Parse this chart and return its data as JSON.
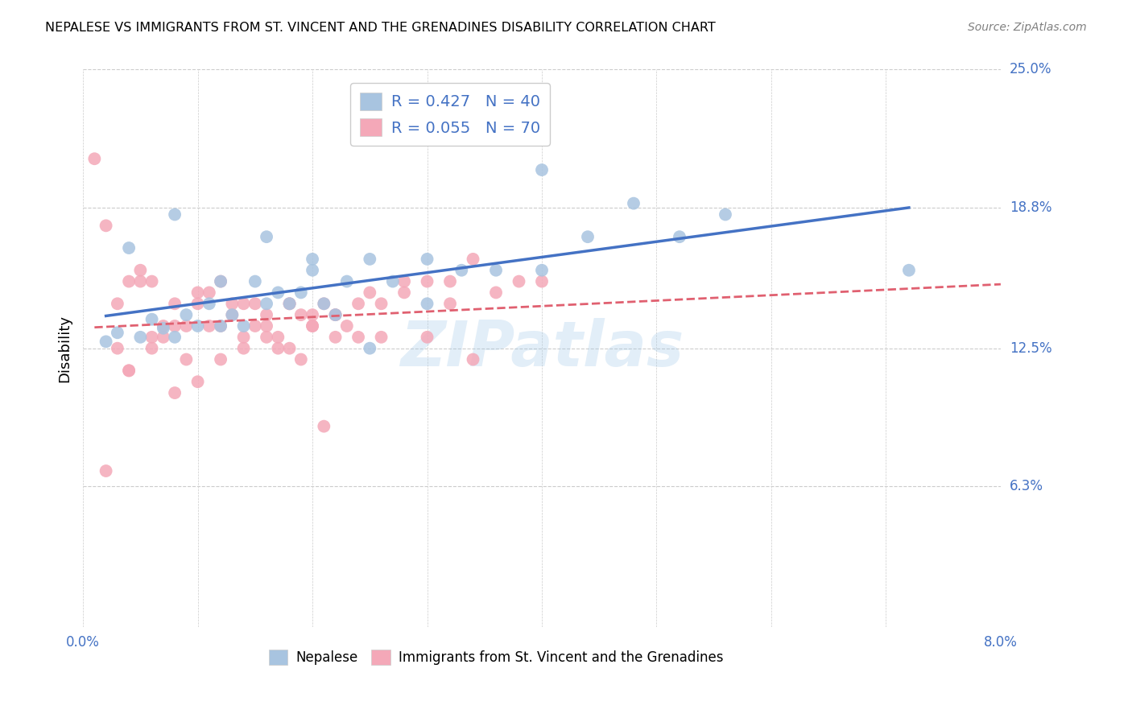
{
  "title": "NEPALESE VS IMMIGRANTS FROM ST. VINCENT AND THE GRENADINES DISABILITY CORRELATION CHART",
  "source": "Source: ZipAtlas.com",
  "ylabel": "Disability",
  "xlim": [
    0.0,
    0.08
  ],
  "ylim": [
    0.0,
    0.25
  ],
  "ytick_labels": [
    "6.3%",
    "12.5%",
    "18.8%",
    "25.0%"
  ],
  "ytick_values": [
    0.063,
    0.125,
    0.188,
    0.25
  ],
  "nepalese_R": 0.427,
  "nepalese_N": 40,
  "svg_R": 0.055,
  "svg_N": 70,
  "nepalese_color": "#a8c4e0",
  "svg_color": "#f4a8b8",
  "nepalese_line_color": "#4472c4",
  "svg_line_color": "#e06070",
  "watermark": "ZIPatlas",
  "legend_label_1": "Nepalese",
  "legend_label_2": "Immigrants from St. Vincent and the Grenadines",
  "nepalese_x": [
    0.002,
    0.003,
    0.004,
    0.005,
    0.006,
    0.007,
    0.008,
    0.009,
    0.01,
    0.011,
    0.012,
    0.013,
    0.014,
    0.015,
    0.016,
    0.017,
    0.018,
    0.019,
    0.02,
    0.021,
    0.022,
    0.023,
    0.025,
    0.027,
    0.03,
    0.033,
    0.036,
    0.04,
    0.044,
    0.048,
    0.052,
    0.056,
    0.008,
    0.012,
    0.016,
    0.02,
    0.025,
    0.03,
    0.04,
    0.072
  ],
  "nepalese_y": [
    0.128,
    0.132,
    0.17,
    0.13,
    0.138,
    0.134,
    0.13,
    0.14,
    0.135,
    0.145,
    0.155,
    0.14,
    0.135,
    0.155,
    0.145,
    0.15,
    0.145,
    0.15,
    0.16,
    0.145,
    0.14,
    0.155,
    0.165,
    0.155,
    0.165,
    0.16,
    0.16,
    0.16,
    0.175,
    0.19,
    0.175,
    0.185,
    0.185,
    0.135,
    0.175,
    0.165,
    0.125,
    0.145,
    0.205,
    0.16
  ],
  "svgnad_x": [
    0.001,
    0.002,
    0.003,
    0.004,
    0.005,
    0.006,
    0.007,
    0.008,
    0.009,
    0.01,
    0.011,
    0.012,
    0.013,
    0.014,
    0.015,
    0.016,
    0.017,
    0.018,
    0.019,
    0.02,
    0.021,
    0.022,
    0.023,
    0.024,
    0.025,
    0.026,
    0.028,
    0.03,
    0.032,
    0.034,
    0.004,
    0.006,
    0.008,
    0.01,
    0.012,
    0.014,
    0.016,
    0.018,
    0.02,
    0.022,
    0.003,
    0.005,
    0.007,
    0.009,
    0.011,
    0.013,
    0.015,
    0.017,
    0.019,
    0.021,
    0.002,
    0.004,
    0.006,
    0.008,
    0.01,
    0.012,
    0.014,
    0.016,
    0.018,
    0.02,
    0.022,
    0.024,
    0.026,
    0.028,
    0.03,
    0.032,
    0.034,
    0.036,
    0.038,
    0.04
  ],
  "svgnad_y": [
    0.21,
    0.18,
    0.125,
    0.115,
    0.16,
    0.13,
    0.13,
    0.135,
    0.135,
    0.15,
    0.135,
    0.155,
    0.145,
    0.145,
    0.145,
    0.14,
    0.13,
    0.145,
    0.14,
    0.135,
    0.145,
    0.14,
    0.135,
    0.13,
    0.15,
    0.145,
    0.15,
    0.155,
    0.145,
    0.12,
    0.155,
    0.125,
    0.105,
    0.11,
    0.12,
    0.125,
    0.13,
    0.125,
    0.14,
    0.13,
    0.145,
    0.155,
    0.135,
    0.12,
    0.15,
    0.14,
    0.135,
    0.125,
    0.12,
    0.09,
    0.07,
    0.115,
    0.155,
    0.145,
    0.145,
    0.135,
    0.13,
    0.135,
    0.145,
    0.135,
    0.14,
    0.145,
    0.13,
    0.155,
    0.13,
    0.155,
    0.165,
    0.15,
    0.155,
    0.155
  ]
}
